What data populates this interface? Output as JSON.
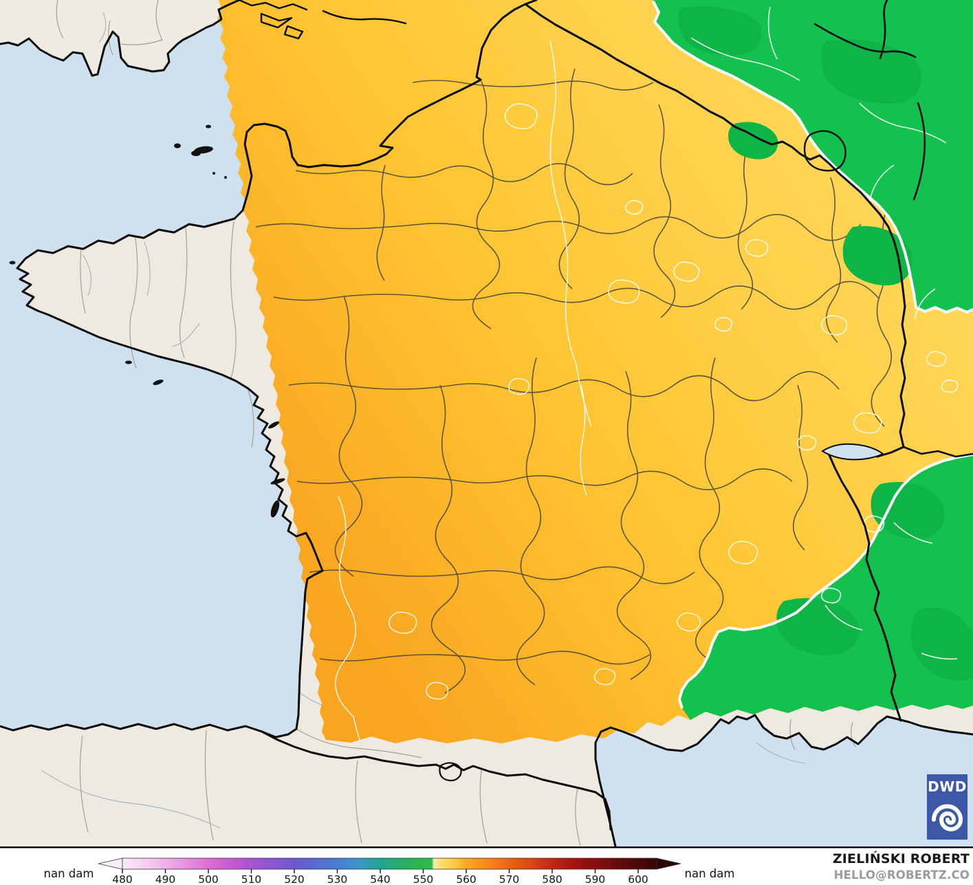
{
  "map": {
    "colors": {
      "sea": "#cfe1f0",
      "land": "#efeae1",
      "land_england": "#f0ebe2",
      "coast": "#0a0a0a",
      "green": "#12c14e",
      "green_dark": "#0fb447",
      "contour_white": "#ffffff",
      "admin_gray": "#a59e92",
      "river": "#a8b6c4",
      "border_black": "#0c0c0c",
      "dept_line": "#42423c",
      "lake": "#cfe0ef"
    },
    "gradient_stops": [
      {
        "o": 0.0,
        "c": "#ffd95e"
      },
      {
        "o": 0.3,
        "c": "#ffd14b"
      },
      {
        "o": 0.52,
        "c": "#ffc837"
      },
      {
        "o": 0.68,
        "c": "#ffbe2d"
      },
      {
        "o": 0.82,
        "c": "#fcb328"
      },
      {
        "o": 0.93,
        "c": "#faa922"
      },
      {
        "o": 1.0,
        "c": "#f9a51f"
      }
    ]
  },
  "legend": {
    "unit_label_left": "nan dam",
    "unit_label_right": "nan dam",
    "ticks": [
      "480",
      "490",
      "500",
      "510",
      "520",
      "530",
      "540",
      "550",
      "560",
      "570",
      "580",
      "590",
      "600"
    ],
    "arrow_left_color": "#fbeffa",
    "arrow_right_color": "#2a0403",
    "colorbar_stops": [
      {
        "o": 0.0,
        "c": "#fae7f7"
      },
      {
        "o": 0.048,
        "c": "#f5cdf0"
      },
      {
        "o": 0.08,
        "c": "#efb0e8"
      },
      {
        "o": 0.121,
        "c": "#e78fde"
      },
      {
        "o": 0.161,
        "c": "#dc6fd2"
      },
      {
        "o": 0.201,
        "c": "#c95cd2"
      },
      {
        "o": 0.241,
        "c": "#a854d2"
      },
      {
        "o": 0.282,
        "c": "#8b56d0"
      },
      {
        "o": 0.322,
        "c": "#6c59cf"
      },
      {
        "o": 0.362,
        "c": "#5669cf"
      },
      {
        "o": 0.402,
        "c": "#4a7ed2"
      },
      {
        "o": 0.443,
        "c": "#3e95c5"
      },
      {
        "o": 0.483,
        "c": "#22a48e"
      },
      {
        "o": 0.515,
        "c": "#27ad6c"
      },
      {
        "o": 0.547,
        "c": "#2bb456"
      },
      {
        "o": 0.579,
        "c": "#2ebc4c"
      },
      {
        "o": 0.583,
        "c": "#fdeeb0"
      },
      {
        "o": 0.595,
        "c": "#fbdf75"
      },
      {
        "o": 0.611,
        "c": "#fdd254"
      },
      {
        "o": 0.627,
        "c": "#fdc23b"
      },
      {
        "o": 0.643,
        "c": "#f9a826"
      },
      {
        "o": 0.668,
        "c": "#f7941f"
      },
      {
        "o": 0.692,
        "c": "#f5811c"
      },
      {
        "o": 0.716,
        "c": "#ef6b16"
      },
      {
        "o": 0.74,
        "c": "#e55713"
      },
      {
        "o": 0.764,
        "c": "#d94814"
      },
      {
        "o": 0.788,
        "c": "#cb3315"
      },
      {
        "o": 0.812,
        "c": "#bc2416"
      },
      {
        "o": 0.837,
        "c": "#ab1713"
      },
      {
        "o": 0.861,
        "c": "#991112"
      },
      {
        "o": 0.885,
        "c": "#860f10"
      },
      {
        "o": 0.917,
        "c": "#6f0c0d"
      },
      {
        "o": 0.949,
        "c": "#570a0a"
      },
      {
        "o": 0.981,
        "c": "#400706"
      },
      {
        "o": 1.0,
        "c": "#320505"
      }
    ]
  },
  "attribution": {
    "author": "ZIELIŃSKI ROBERT",
    "contact": "HELLO@ROBERTZ.CO"
  },
  "logo": {
    "text": "DWD",
    "bg": "#3c58a6"
  }
}
